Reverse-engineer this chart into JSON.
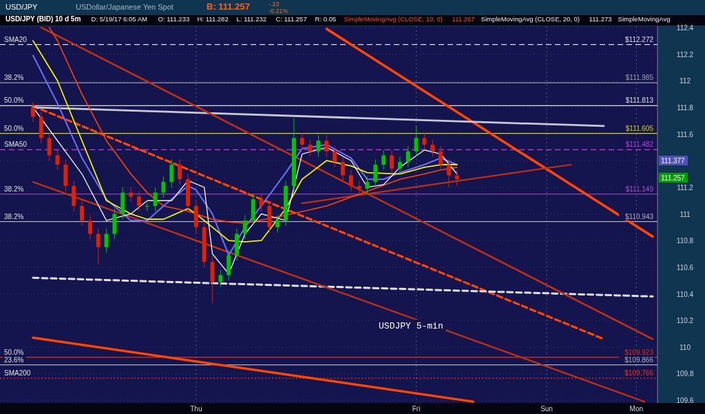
{
  "chart_data": {
    "type": "candlestick",
    "title": "USD/JPY (BID) 10 d 5m",
    "categories": [
      null,
      null,
      null,
      null,
      null,
      null,
      null,
      null,
      null,
      null,
      null,
      null,
      null,
      null,
      null,
      null,
      null,
      null,
      null,
      null,
      "Thu",
      null,
      null,
      null,
      null,
      null,
      null,
      null,
      null,
      null,
      null,
      null,
      null,
      null,
      null,
      null,
      null,
      null,
      null,
      null,
      null,
      null,
      null,
      null,
      null,
      null,
      null,
      "Fri",
      null,
      null,
      null,
      null,
      null,
      null,
      null,
      null,
      null,
      null,
      null,
      null,
      null,
      null,
      null,
      "Sun",
      null,
      null,
      null,
      null,
      null,
      null,
      null,
      null,
      null,
      null,
      "Mon",
      null,
      null
    ],
    "ohlc": [
      [
        111.8,
        111.84,
        111.69,
        111.73
      ],
      [
        111.73,
        111.77,
        111.53,
        111.57
      ],
      [
        111.57,
        111.61,
        111.4,
        111.44
      ],
      [
        111.44,
        111.48,
        111.33,
        111.37
      ],
      [
        111.37,
        111.41,
        111.17,
        111.21
      ],
      [
        111.21,
        111.25,
        111.02,
        111.06
      ],
      [
        111.06,
        111.1,
        110.91,
        110.95
      ],
      [
        110.95,
        110.99,
        110.81,
        110.85
      ],
      [
        110.85,
        110.89,
        110.62,
        110.75
      ],
      [
        110.75,
        110.89,
        110.71,
        110.85
      ],
      [
        110.85,
        111.04,
        110.81,
        111.0
      ],
      [
        111.0,
        111.2,
        110.96,
        111.16
      ],
      [
        111.16,
        111.2,
        111.09,
        111.13
      ],
      [
        111.13,
        111.17,
        111.02,
        111.06
      ],
      [
        111.06,
        111.1,
        111.02,
        111.06
      ],
      [
        111.06,
        111.2,
        111.02,
        111.16
      ],
      [
        111.16,
        111.28,
        111.12,
        111.24
      ],
      [
        111.24,
        111.41,
        111.2,
        111.37
      ],
      [
        111.37,
        111.41,
        111.22,
        111.26
      ],
      [
        111.26,
        111.3,
        111.02,
        111.06
      ],
      [
        111.06,
        111.1,
        110.86,
        110.9
      ],
      [
        110.9,
        110.94,
        110.6,
        110.64
      ],
      [
        110.64,
        110.68,
        110.33,
        110.49
      ],
      [
        110.49,
        110.58,
        110.45,
        110.54
      ],
      [
        110.54,
        110.73,
        110.5,
        110.69
      ],
      [
        110.69,
        110.89,
        110.65,
        110.85
      ],
      [
        110.85,
        110.99,
        110.81,
        110.95
      ],
      [
        110.95,
        111.15,
        110.91,
        111.11
      ],
      [
        111.11,
        111.15,
        111.02,
        111.06
      ],
      [
        111.06,
        111.1,
        110.86,
        110.9
      ],
      [
        110.9,
        110.99,
        110.86,
        110.95
      ],
      [
        110.95,
        111.25,
        110.91,
        111.21
      ],
      [
        111.21,
        111.72,
        111.17,
        111.57
      ],
      [
        111.57,
        111.61,
        111.48,
        111.52
      ],
      [
        111.52,
        111.56,
        111.43,
        111.47
      ],
      [
        111.47,
        111.59,
        111.43,
        111.55
      ],
      [
        111.55,
        111.59,
        111.43,
        111.47
      ],
      [
        111.47,
        111.51,
        111.35,
        111.39
      ],
      [
        111.39,
        111.43,
        111.25,
        111.29
      ],
      [
        111.29,
        111.33,
        111.17,
        111.21
      ],
      [
        111.21,
        111.25,
        111.15,
        111.19
      ],
      [
        111.19,
        111.28,
        111.15,
        111.24
      ],
      [
        111.24,
        111.41,
        111.2,
        111.37
      ],
      [
        111.37,
        111.48,
        111.33,
        111.44
      ],
      [
        111.44,
        111.48,
        111.3,
        111.34
      ],
      [
        111.34,
        111.43,
        111.3,
        111.39
      ],
      [
        111.39,
        111.51,
        111.35,
        111.47
      ],
      [
        111.47,
        111.66,
        111.43,
        111.57
      ],
      [
        111.57,
        111.61,
        111.48,
        111.52
      ],
      [
        111.52,
        111.56,
        111.43,
        111.47
      ],
      [
        111.47,
        111.51,
        111.33,
        111.37
      ],
      [
        111.37,
        111.41,
        111.2,
        111.29
      ],
      [
        111.29,
        111.33,
        111.21,
        111.26
      ],
      null,
      null,
      null,
      null,
      null,
      null,
      null,
      null,
      null,
      null,
      null,
      null,
      null,
      null,
      null,
      null,
      null,
      null,
      null,
      null,
      null,
      null,
      null,
      null
    ],
    "colors": [
      "#e02000",
      "#e02000",
      "#e02000",
      "#e02000",
      "#e02000",
      "#e02000",
      "#e02000",
      "#e02000",
      "#e02000",
      "#00c400",
      "#00c400",
      "#00c400",
      "#e02000",
      "#e02000",
      "#00c400",
      "#00c400",
      "#00c400",
      "#00c400",
      "#e02000",
      "#e02000",
      "#e02000",
      "#e02000",
      "#e02000",
      "#00c400",
      "#00c400",
      "#00c400",
      "#00c400",
      "#00c400",
      "#e02000",
      "#e02000",
      "#00c400",
      "#00c400",
      "#00c400",
      "#e02000",
      "#e02000",
      "#00c400",
      "#e02000",
      "#e02000",
      "#e02000",
      "#e02000",
      "#e02000",
      "#00c400",
      "#00c400",
      "#00c400",
      "#e02000",
      "#00c400",
      "#00c400",
      "#00c400",
      "#e02000",
      "#e02000",
      "#e02000",
      "#e02000",
      "#e02000",
      null,
      null,
      null,
      null,
      null,
      null,
      null,
      null,
      null,
      null,
      null,
      null,
      null,
      null,
      null,
      null,
      null,
      null,
      null,
      null,
      null,
      null,
      null,
      null
    ],
    "series": [
      {
        "type": "line",
        "color": "#ff4500",
        "values": [
          null,
          null,
          null,
          null,
          null,
          null,
          null,
          null,
          null,
          null,
          null,
          null,
          null,
          null,
          null,
          null,
          null,
          null,
          null,
          null,
          null,
          null,
          null,
          null,
          null,
          null,
          null,
          null,
          null,
          null,
          null,
          null,
          null,
          null,
          null,
          null,
          112.39,
          null,
          null,
          null,
          null,
          null,
          null,
          null,
          null,
          null,
          null,
          null,
          null,
          null,
          null,
          null,
          null,
          null,
          null,
          null,
          null,
          null,
          null,
          null,
          null,
          null,
          null,
          null,
          null,
          null,
          null,
          null,
          null,
          null,
          null,
          null,
          null,
          null,
          null,
          null,
          110.83
        ]
      },
      {
        "type": "line",
        "color": "#ff4500",
        "values": [
          110.07,
          null,
          null,
          null,
          null,
          null,
          null,
          null,
          null,
          null,
          null,
          null,
          null,
          null,
          null,
          null,
          null,
          null,
          null,
          null,
          null,
          null,
          null,
          null,
          null,
          null,
          null,
          null,
          null,
          null,
          null,
          null,
          null,
          null,
          null,
          null,
          null,
          null,
          null,
          null,
          null,
          null,
          null,
          null,
          null,
          null,
          null,
          null,
          null,
          null,
          null,
          null,
          null,
          null,
          109.59,
          null,
          null,
          null,
          null,
          null,
          null,
          null,
          null,
          null,
          null,
          null,
          null,
          null,
          null,
          null,
          null,
          null,
          null,
          null,
          null,
          null,
          null
        ]
      },
      {
        "type": "line",
        "color": "#ff4500",
        "line_style": "dashed",
        "values": [
          111.81,
          null,
          null,
          null,
          null,
          null,
          null,
          null,
          null,
          null,
          null,
          null,
          null,
          null,
          null,
          null,
          null,
          null,
          null,
          null,
          null,
          null,
          null,
          null,
          null,
          null,
          null,
          null,
          null,
          null,
          null,
          null,
          null,
          null,
          null,
          null,
          null,
          null,
          null,
          null,
          null,
          null,
          null,
          null,
          null,
          null,
          null,
          null,
          null,
          null,
          null,
          null,
          null,
          null,
          null,
          null,
          null,
          null,
          null,
          null,
          null,
          null,
          null,
          null,
          null,
          null,
          null,
          null,
          null,
          null,
          110.06,
          null,
          null,
          null,
          null,
          null,
          null
        ]
      },
      {
        "type": "line",
        "color": "#e0e0e0",
        "line_style": "dashed",
        "values": [
          110.52,
          null,
          null,
          null,
          null,
          null,
          null,
          null,
          null,
          null,
          null,
          null,
          null,
          null,
          null,
          null,
          null,
          null,
          null,
          null,
          null,
          null,
          null,
          null,
          null,
          null,
          null,
          null,
          null,
          null,
          null,
          null,
          null,
          null,
          null,
          null,
          null,
          null,
          null,
          null,
          null,
          null,
          null,
          null,
          null,
          null,
          null,
          null,
          null,
          null,
          null,
          null,
          null,
          null,
          null,
          null,
          null,
          null,
          null,
          null,
          null,
          null,
          null,
          null,
          null,
          null,
          null,
          null,
          null,
          null,
          null,
          null,
          null,
          null,
          null,
          null,
          110.38
        ]
      },
      {
        "type": "line",
        "color": "#c8c8d8",
        "values": [
          111.8,
          null,
          null,
          null,
          null,
          null,
          null,
          null,
          null,
          null,
          null,
          null,
          null,
          null,
          null,
          null,
          null,
          null,
          null,
          null,
          null,
          null,
          null,
          null,
          null,
          null,
          null,
          null,
          null,
          null,
          null,
          null,
          null,
          null,
          null,
          null,
          null,
          null,
          null,
          null,
          null,
          null,
          null,
          null,
          null,
          null,
          null,
          null,
          null,
          null,
          null,
          null,
          null,
          null,
          null,
          null,
          null,
          null,
          null,
          null,
          null,
          null,
          null,
          null,
          null,
          null,
          null,
          null,
          null,
          null,
          111.66,
          null,
          null,
          null,
          null,
          null,
          null
        ]
      },
      {
        "type": "line",
        "color": "#c03010",
        "values": [
          null,
          112.4,
          null,
          null,
          null,
          null,
          null,
          null,
          null,
          null,
          null,
          null,
          null,
          null,
          null,
          null,
          null,
          null,
          null,
          null,
          null,
          null,
          null,
          null,
          null,
          null,
          null,
          null,
          null,
          null,
          null,
          null,
          null,
          null,
          null,
          null,
          null,
          null,
          null,
          null,
          null,
          null,
          null,
          null,
          null,
          null,
          null,
          null,
          null,
          null,
          null,
          null,
          null,
          null,
          null,
          null,
          null,
          null,
          null,
          null,
          null,
          null,
          null,
          null,
          null,
          null,
          null,
          null,
          null,
          null,
          null,
          null,
          null,
          null,
          null,
          null,
          110.06
        ]
      },
      {
        "type": "line",
        "color": "#c03010",
        "values": [
          111.24,
          null,
          null,
          null,
          null,
          null,
          null,
          null,
          null,
          null,
          null,
          null,
          null,
          null,
          null,
          null,
          null,
          null,
          null,
          null,
          null,
          null,
          null,
          null,
          null,
          null,
          null,
          null,
          null,
          null,
          null,
          null,
          null,
          null,
          null,
          null,
          null,
          null,
          null,
          null,
          null,
          null,
          null,
          null,
          null,
          null,
          null,
          null,
          null,
          null,
          null,
          null,
          null,
          null,
          null,
          null,
          null,
          null,
          null,
          null,
          null,
          null,
          null,
          null,
          null,
          null,
          null,
          null,
          null,
          null,
          null,
          null,
          null,
          null,
          null,
          109.59,
          null
        ]
      },
      {
        "type": "line",
        "color": "#c03010",
        "values": [
          null,
          null,
          null,
          null,
          null,
          null,
          null,
          null,
          null,
          null,
          null,
          null,
          null,
          null,
          null,
          null,
          null,
          null,
          null,
          null,
          null,
          null,
          null,
          null,
          null,
          null,
          null,
          null,
          null,
          null,
          null,
          null,
          null,
          111.08,
          null,
          null,
          null,
          null,
          null,
          null,
          null,
          null,
          null,
          null,
          null,
          null,
          null,
          null,
          null,
          null,
          null,
          null,
          null,
          null,
          null,
          null,
          null,
          null,
          null,
          null,
          null,
          null,
          null,
          null,
          null,
          null,
          111.37,
          null,
          null,
          null,
          null,
          null,
          null,
          null,
          null,
          null,
          null
        ]
      },
      {
        "type": "line",
        "color": "#7070ff",
        "values": [
          112.19,
          null,
          null,
          111.83,
          null,
          null,
          111.42,
          null,
          null,
          111.11,
          null,
          null,
          110.95,
          null,
          110.95,
          null,
          111.06,
          null,
          null,
          111.21,
          111.18,
          null,
          111.0,
          null,
          110.69,
          null,
          110.9,
          null,
          111.06,
          null,
          null,
          111.31,
          null,
          111.49,
          null,
          null,
          111.52,
          null,
          null,
          111.42,
          null,
          111.26,
          null,
          111.26,
          null,
          111.31,
          null,
          null,
          111.37,
          null,
          111.42,
          null,
          111.37,
          null,
          null,
          null,
          null,
          null,
          null,
          null,
          null,
          null,
          null,
          null,
          null,
          null,
          null,
          null,
          null,
          null,
          null,
          null,
          null,
          null,
          null,
          null,
          null
        ]
      },
      {
        "type": "line",
        "color": "#f0f000",
        "values": [
          112.3,
          null,
          null,
          112.0,
          null,
          null,
          111.55,
          null,
          null,
          111.1,
          null,
          null,
          111.0,
          null,
          110.96,
          null,
          110.96,
          null,
          null,
          111.04,
          111.0,
          null,
          110.9,
          null,
          110.8,
          null,
          110.79,
          null,
          110.8,
          null,
          null,
          111.04,
          null,
          111.26,
          null,
          null,
          111.4,
          null,
          null,
          111.36,
          null,
          111.31,
          null,
          null,
          null,
          111.3,
          null,
          null,
          111.35,
          null,
          111.37,
          null,
          111.37,
          null,
          null,
          null,
          null,
          null,
          null,
          null,
          null,
          null,
          null,
          null,
          null,
          null,
          null,
          null,
          null,
          null,
          null,
          null,
          null,
          null,
          null,
          null,
          null
        ]
      },
      {
        "type": "line",
        "color": "#ff4500",
        "values": [
          null,
          null,
          112.4,
          112.3,
          null,
          null,
          111.9,
          null,
          null,
          111.55,
          null,
          null,
          111.3,
          null,
          111.16,
          null,
          111.06,
          null,
          null,
          111.02,
          null,
          null,
          110.96,
          null,
          110.94,
          null,
          110.93,
          null,
          null,
          null,
          null,
          110.99,
          null,
          null,
          null,
          null,
          111.06,
          null,
          null,
          null,
          null,
          111.17,
          null,
          null,
          null,
          111.26,
          null,
          null,
          111.3,
          null,
          111.33,
          null,
          111.35,
          null,
          null,
          null,
          null,
          null,
          null,
          null,
          null,
          null,
          null,
          null,
          null,
          null,
          null,
          null,
          null,
          null,
          null,
          null,
          null,
          null,
          null,
          null,
          null
        ]
      },
      {
        "type": "line",
        "color": "#e8e8e8",
        "values": [
          111.8,
          null,
          null,
          111.55,
          null,
          null,
          111.3,
          null,
          null,
          110.95,
          null,
          null,
          111.0,
          null,
          111.1,
          null,
          null,
          111.1,
          null,
          111.25,
          null,
          111.2,
          110.7,
          null,
          110.55,
          null,
          110.85,
          null,
          111.0,
          null,
          null,
          110.95,
          null,
          111.45,
          null,
          null,
          111.5,
          null,
          null,
          111.4,
          null,
          111.2,
          null,
          111.22,
          null,
          111.35,
          null,
          null,
          111.48,
          null,
          111.45,
          null,
          111.3,
          null,
          null,
          null,
          null,
          null,
          null,
          null,
          null,
          null,
          null,
          null,
          null,
          null,
          null,
          null,
          null,
          null,
          null,
          null,
          null,
          null,
          null,
          null,
          null
        ]
      }
    ],
    "ylim": [
      109.58,
      112.41
    ],
    "yticks": [
      109.6,
      109.8,
      110,
      110.2,
      110.4,
      110.6,
      110.8,
      111,
      111.2,
      {
        "value": 111.4,
        "label": null
      },
      111.6,
      111.8,
      112,
      112.2,
      112.4
    ],
    "grid": true,
    "ref_lines": [
      {
        "axis": "y",
        "value": 112.272,
        "label": "$112.272",
        "color": "#e0e0e0",
        "line_style": "dashed"
      },
      {
        "axis": "y",
        "value": 111.985,
        "label": "$111.985",
        "color": "#a0a0b0"
      },
      {
        "axis": "y",
        "value": 111.813,
        "label": "$111.813",
        "color": "#e0e0e0"
      },
      {
        "axis": "y",
        "value": 111.605,
        "label": "$111.605",
        "color": "#d8d800"
      },
      {
        "axis": "y",
        "value": 111.482,
        "label": "$111.482",
        "color": "#c040e0",
        "line_style": "dashed"
      },
      {
        "axis": "y",
        "value": 111.149,
        "label": "$111.149",
        "color": "#b050d0"
      },
      {
        "axis": "y",
        "value": 110.943,
        "label": "$110.943",
        "color": "#b0b0c0"
      },
      {
        "axis": "y",
        "value": 109.923,
        "label": "$109.923",
        "color": "#e03010"
      },
      {
        "axis": "y",
        "value": 109.866,
        "label": "$109.866",
        "color": "#b0b0c0"
      },
      {
        "axis": "y",
        "value": 109.766,
        "label": "$109.766",
        "color": "#ff3010",
        "line_style": "dotted"
      }
    ],
    "annotations": [
      "USD/JPY",
      "USDollar/Japanese Yen Spot",
      "B: 111.257",
      "-.23",
      "-0.21%",
      "D: 5/19/17 6:05 AM",
      "O: 111.233",
      "H: 111.282",
      "L: 111.232",
      "C: 111.257",
      "R: 0.05",
      "SimpleMovingAvg (CLOSE, 10, 0)",
      "111.267",
      "SimpleMovingAvg (CLOSE, 20, 0)",
      "111.273",
      "SimpleMovingAvg",
      "111.377",
      "111.257",
      "USDJPY 5-min",
      {
        "text": "SMA20",
        "y": 112.272
      },
      {
        "text": "38.2%",
        "y": 111.985
      },
      {
        "text": "50.0%",
        "y": 111.813
      },
      {
        "text": "50.0%",
        "y": 111.605
      },
      {
        "text": "SMA50",
        "y": 111.482
      },
      {
        "text": "38.2%",
        "y": 111.149
      },
      {
        "text": "38.2%",
        "y": 110.943
      },
      {
        "text": "50.0%",
        "y": 109.923
      },
      {
        "text": "23.6%",
        "y": 109.866
      },
      {
        "text": "SMA200",
        "y": 109.766
      }
    ]
  }
}
